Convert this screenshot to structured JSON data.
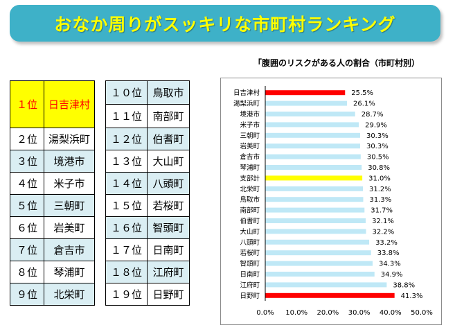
{
  "banner": {
    "title": "おなか周りがスッキリな市町村ランキング"
  },
  "ranking": {
    "left": [
      {
        "position": "１位",
        "name": "日吉津村"
      },
      {
        "position": "２位",
        "name": "湯梨浜町"
      },
      {
        "position": "３位",
        "name": "境港市"
      },
      {
        "position": "４位",
        "name": "米子市"
      },
      {
        "position": "５位",
        "name": "三朝町"
      },
      {
        "position": "６位",
        "name": "岩美町"
      },
      {
        "position": "７位",
        "name": "倉吉市"
      },
      {
        "position": "８位",
        "name": "琴浦町"
      },
      {
        "position": "９位",
        "name": "北栄町"
      }
    ],
    "right": [
      {
        "position": "１０位",
        "name": "鳥取市"
      },
      {
        "position": "１１位",
        "name": "南部町"
      },
      {
        "position": "１２位",
        "name": "伯耆町"
      },
      {
        "position": "１３位",
        "name": "大山町"
      },
      {
        "position": "１４位",
        "name": "八頭町"
      },
      {
        "position": "１５位",
        "name": "若桜町"
      },
      {
        "position": "１６位",
        "name": "智頭町"
      },
      {
        "position": "１７位",
        "name": "日南町"
      },
      {
        "position": "１８位",
        "name": "江府町"
      },
      {
        "position": "１９位",
        "name": "日野町"
      }
    ]
  },
  "colors": {
    "banner": "#3eb1c8",
    "banner_text": "#ffff00",
    "shade_row": "#daeef3",
    "top_row": "#ffff00",
    "top_text": "#ff0000",
    "bar_default": "#bfe8f6",
    "bar_extreme": "#ff0000",
    "bar_average": "#ffff00"
  },
  "chart_data": {
    "type": "bar",
    "orientation": "horizontal",
    "title": "「腹囲のリスクがある人の割合（市町村別）",
    "categories": [
      "日吉津村",
      "湯梨浜町",
      "境港市",
      "米子市",
      "三朝町",
      "岩美町",
      "倉吉市",
      "琴浦町",
      "支部計",
      "北栄町",
      "鳥取市",
      "南部町",
      "伯耆町",
      "大山町",
      "八頭町",
      "若桜町",
      "智頭町",
      "日南町",
      "江府町",
      "日野町"
    ],
    "values": [
      25.5,
      26.1,
      28.7,
      29.9,
      30.3,
      30.3,
      30.5,
      30.8,
      31.0,
      31.2,
      31.3,
      31.7,
      32.1,
      32.2,
      33.2,
      33.8,
      34.3,
      34.9,
      38.8,
      41.3
    ],
    "data_labels": [
      "25.5%",
      "26.1%",
      "28.7%",
      "29.9%",
      "30.3%",
      "30.3%",
      "30.5%",
      "30.8%",
      "31.0%",
      "31.2%",
      "31.3%",
      "31.7%",
      "32.1%",
      "32.2%",
      "33.2%",
      "33.8%",
      "34.3%",
      "34.9%",
      "38.8%",
      "41.3%"
    ],
    "highlight": {
      "日吉津村": "extreme",
      "日野町": "extreme",
      "支部計": "average"
    },
    "xlim": [
      0,
      50
    ],
    "x_ticks": [
      "0.0%",
      "10.0%",
      "20.0%",
      "30.0%",
      "40.0%",
      "50.0%"
    ],
    "xlabel": "",
    "ylabel": "",
    "grid": false,
    "legend": "none"
  }
}
